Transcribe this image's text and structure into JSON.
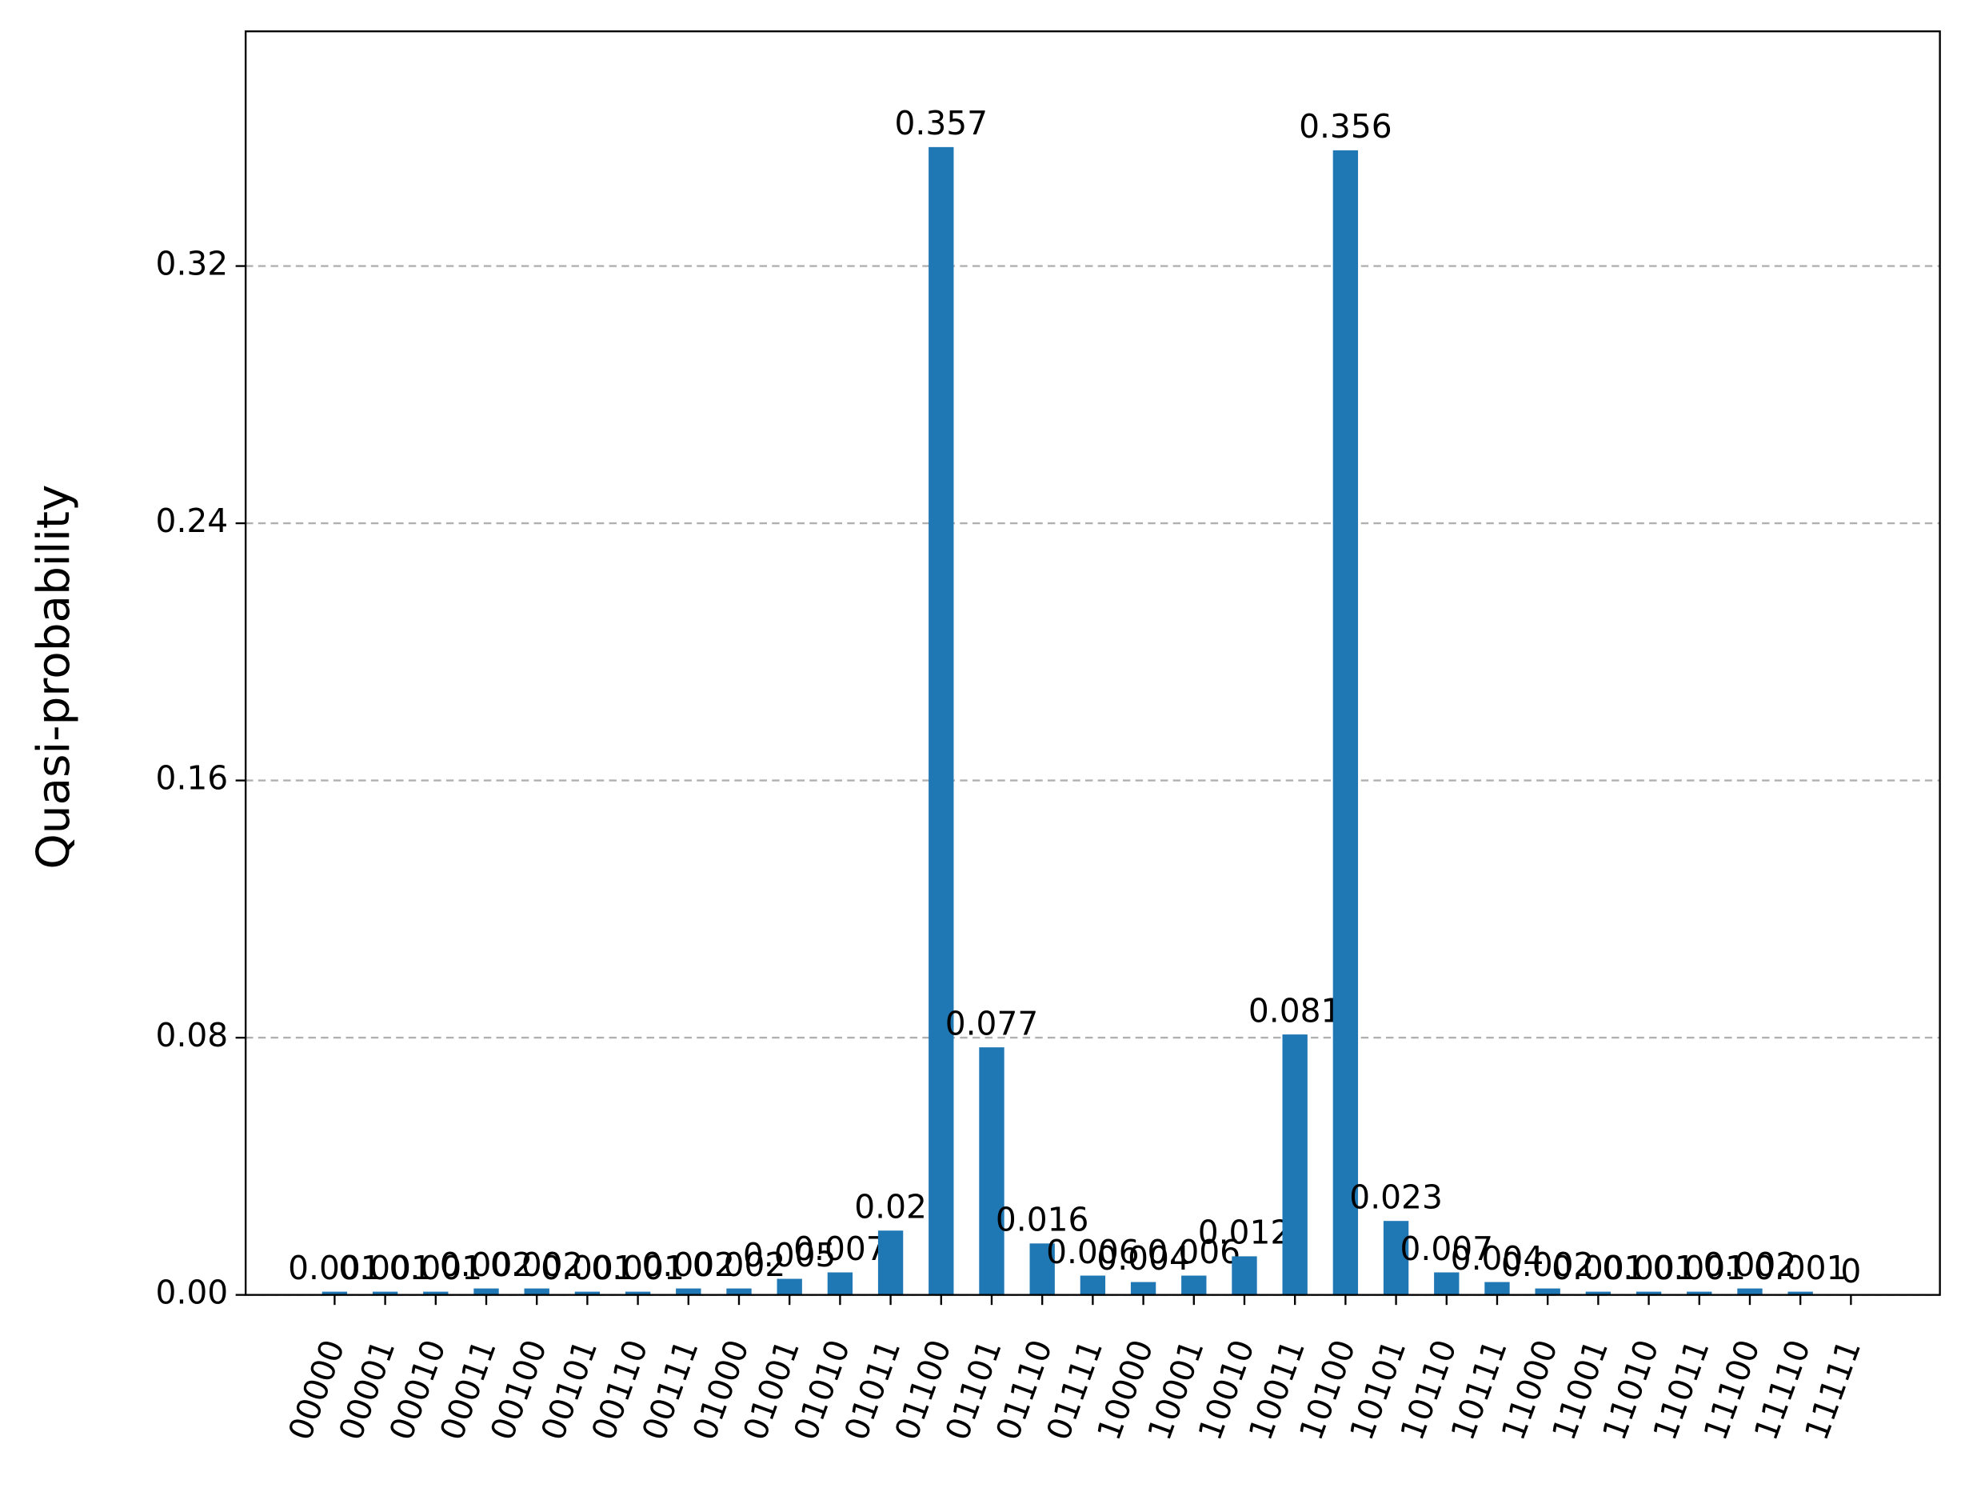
{
  "chart_data": {
    "type": "bar",
    "ylabel": "Quasi-probability",
    "categories": [
      "00000",
      "00001",
      "00010",
      "00011",
      "00100",
      "00101",
      "00110",
      "00111",
      "01000",
      "01001",
      "01010",
      "01011",
      "01100",
      "01101",
      "01110",
      "01111",
      "10000",
      "10001",
      "10010",
      "10011",
      "10100",
      "10101",
      "10110",
      "10111",
      "11000",
      "11001",
      "11010",
      "11011",
      "11100",
      "11110",
      "11111"
    ],
    "values": [
      0.001,
      0.001,
      0.001,
      0.002,
      0.002,
      0.001,
      0.001,
      0.002,
      0.002,
      0.005,
      0.007,
      0.02,
      0.357,
      0.077,
      0.016,
      0.006,
      0.004,
      0.006,
      0.012,
      0.081,
      0.356,
      0.023,
      0.007,
      0.004,
      0.002,
      0.001,
      0.001,
      0.001,
      0.002,
      0.001,
      0
    ],
    "color": "#1f77b4",
    "ylim": [
      0,
      0.393
    ],
    "yticks": [
      {
        "value": 0,
        "label": "0.00"
      },
      0.08,
      0.16,
      0.24,
      0.32
    ],
    "grid": true
  }
}
